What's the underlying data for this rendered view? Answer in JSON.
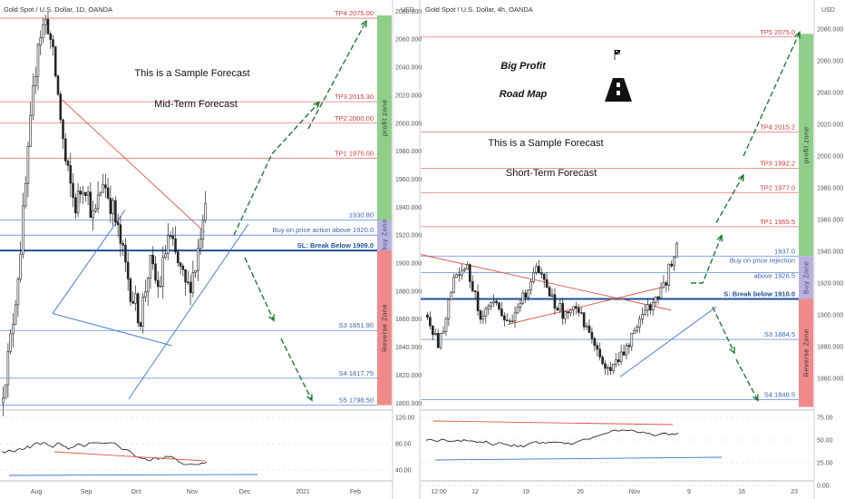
{
  "colors": {
    "bull": "#26a69a",
    "bear": "#ef5350",
    "bullOutline": "#1f1f1f",
    "bearOutline": "#1f1f1f",
    "levelRed": "#e57373",
    "levelBlue": "#5b8bd6",
    "slLine": "#1f4f9b",
    "arrow": "#1e7b34",
    "profitZone": "#8fcf8a",
    "buyZone": "#b7b3dc",
    "reverseZone": "#f08a8a",
    "rsiLine": "#111111",
    "trendRed": "#e05545",
    "trendBlue": "#3b73d6"
  },
  "left": {
    "title": "Gold Spot / U.S. Dollar, 1D, OANDA",
    "currency": "USD",
    "annotations": [
      "This is a Sample Forecast",
      "Mid-Term Forecast"
    ],
    "yTicks": [
      "2080.000",
      "2060.000",
      "2040.000",
      "2020.000",
      "2000.000",
      "1980.000",
      "1960.000",
      "1940.000",
      "1920.000",
      "1900.000",
      "1880.000",
      "1860.000",
      "1840.000",
      "1820.000",
      "1800.000"
    ],
    "xTicks": [
      "Aug",
      "Sep",
      "Oct",
      "Nov",
      "Dec",
      "2021",
      "Feb"
    ],
    "levels": [
      {
        "label": "TP4 2075.00",
        "price": 2075.0,
        "kind": "tp"
      },
      {
        "label": "TP3 2015.30",
        "price": 2015.3,
        "kind": "tp"
      },
      {
        "label": "TP2 2000.00",
        "price": 2000.0,
        "kind": "tp"
      },
      {
        "label": "TP1 1975.00",
        "price": 1975.0,
        "kind": "tp"
      },
      {
        "label": "1930.80",
        "price": 1930.8,
        "kind": "entry"
      },
      {
        "label": "Buy on price action above 1920.0",
        "price": 1920.0,
        "kind": "entry"
      },
      {
        "label": "SL: Break Below 1909.0",
        "price": 1909.0,
        "kind": "sl"
      },
      {
        "label": "S3 1851.90",
        "price": 1851.9,
        "kind": "support"
      },
      {
        "label": "S4 1817.75",
        "price": 1817.75,
        "kind": "support"
      },
      {
        "label": "S5 1798.50",
        "price": 1798.5,
        "kind": "support"
      }
    ],
    "zones": [
      {
        "label": "profit zone",
        "from": 1930.8,
        "to": 2077
      },
      {
        "label": "Buy Zone",
        "from": 1909.0,
        "to": 1930.8
      },
      {
        "label": "Reverse Zone",
        "from": 1798.5,
        "to": 1909.0
      }
    ],
    "rsiTicks": [
      "120.00",
      "80.00",
      "40.00"
    ]
  },
  "right": {
    "title": "Gold Spot / U.S. Dollar, 4h, OANDA",
    "currency": "USD",
    "annotations": [
      "Big Profit",
      "Road Map",
      "This is a Sample Forecast",
      "Short-Term Forecast"
    ],
    "yTicks": [
      "2080.000",
      "2060.000",
      "2040.000",
      "2020.000",
      "2000.000",
      "1980.000",
      "1960.000",
      "1940.000",
      "1920.000",
      "1900.000",
      "1880.000",
      "1860.000"
    ],
    "xTicks": [
      "12:00",
      "12",
      "19",
      "26",
      "Nov",
      "9",
      "16",
      "23"
    ],
    "levels": [
      {
        "label": "TP5 2075.0",
        "price": 2075.0,
        "kind": "tp"
      },
      {
        "label": "TP4 2015.2",
        "price": 2015.2,
        "kind": "tp"
      },
      {
        "label": "TP3 1992.2",
        "price": 1992.2,
        "kind": "tp"
      },
      {
        "label": "TP2 1977.0",
        "price": 1977.0,
        "kind": "tp"
      },
      {
        "label": "TP1 1955.5",
        "price": 1955.5,
        "kind": "tp"
      },
      {
        "label": "1937.0",
        "price": 1937.0,
        "kind": "entry"
      },
      {
        "label": "Buy on price rejection",
        "label2": "above 1926.5",
        "price": 1926.5,
        "kind": "entry"
      },
      {
        "label": "S: Break below 1910.0",
        "price": 1910.0,
        "kind": "sl"
      },
      {
        "label": "S3 1884.5",
        "price": 1884.5,
        "kind": "support"
      },
      {
        "label": "S4 1846.5",
        "price": 1846.5,
        "kind": "support"
      }
    ],
    "zones": [
      {
        "label": "profit zone",
        "from": 1937.0,
        "to": 2077
      },
      {
        "label": "Buy Zone",
        "from": 1910.0,
        "to": 1937.0
      },
      {
        "label": "Reverse Zone",
        "from": 1842,
        "to": 1910.0
      }
    ],
    "rsiTicks": [
      "75.00",
      "50.00",
      "25.00",
      "0.00"
    ]
  },
  "chart_data": [
    {
      "type": "candlestick",
      "title": "Gold Spot / U.S. Dollar, 1D, OANDA",
      "ylim": [
        1795,
        2088
      ],
      "x": [
        "Aug",
        "Sep",
        "Oct",
        "Nov",
        "Dec",
        "2021",
        "Feb"
      ],
      "key_levels": [
        2075.0,
        2015.3,
        2000.0,
        1975.0,
        1930.8,
        1920.0,
        1909.0,
        1851.9,
        1817.75,
        1798.5
      ],
      "approx_path": [
        1800,
        1840,
        1900,
        1980,
        2060,
        2075,
        2030,
        1970,
        1940,
        1960,
        1930,
        1960,
        1940,
        1910,
        1880,
        1860,
        1900,
        1880,
        1920,
        1900,
        1880,
        1900,
        1950
      ]
    },
    {
      "type": "candlestick",
      "title": "Gold Spot / U.S. Dollar, 4h, OANDA",
      "ylim": [
        1840,
        2088
      ],
      "x": [
        "12:00",
        "12",
        "19",
        "26",
        "Nov",
        "9",
        "16",
        "23"
      ],
      "key_levels": [
        2075.0,
        2015.2,
        1992.2,
        1977.0,
        1955.5,
        1937.0,
        1926.5,
        1910.0,
        1884.5,
        1846.5
      ],
      "approx_path": [
        1900,
        1880,
        1920,
        1930,
        1900,
        1905,
        1895,
        1910,
        1930,
        1910,
        1900,
        1905,
        1880,
        1865,
        1875,
        1890,
        1905,
        1915,
        1945
      ]
    }
  ]
}
